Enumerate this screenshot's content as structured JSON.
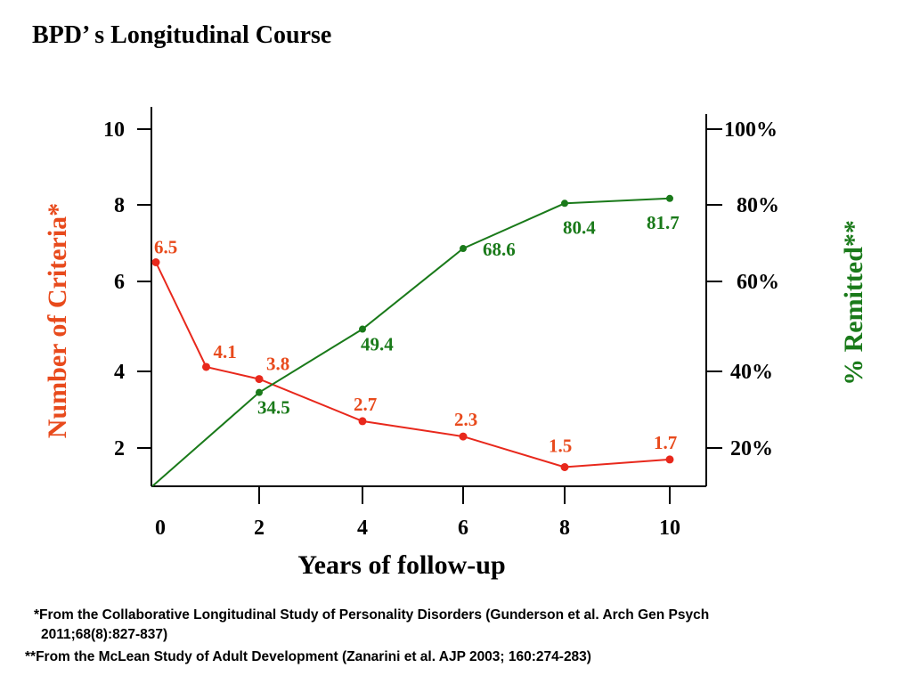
{
  "slide": {
    "title": "BPD’ s Longitudinal Course"
  },
  "colors": {
    "criteria": "#e8281c",
    "criteria_label": "#e84a1c",
    "remitted": "#1a7a1a",
    "axis": "#000000"
  },
  "chart_data": {
    "type": "line",
    "title": "BPD’ s Longitudinal Course",
    "xlabel": "Years of follow-up",
    "ylabel_left": "Number of Criteria*",
    "ylabel_right": "% Remitted**",
    "x_ticks": [
      "0",
      "2",
      "4",
      "6",
      "8",
      "10"
    ],
    "x_tick_values": [
      0,
      2,
      4,
      6,
      8,
      10
    ],
    "xlim": [
      0,
      10.5
    ],
    "y_left_ticks": [
      "10",
      "8",
      "6",
      "4",
      "2"
    ],
    "y_left_tick_values": [
      10,
      8,
      6,
      4,
      2
    ],
    "y_left_lim": [
      1,
      10
    ],
    "y_right_ticks": [
      "100%",
      "80%",
      "60%",
      "40%",
      "20%"
    ],
    "y_right_tick_values": [
      100,
      80,
      60,
      40,
      20
    ],
    "y_right_lim": [
      0,
      100
    ],
    "grid": false,
    "legend": "none",
    "series": [
      {
        "name": "Number of Criteria",
        "axis": "left",
        "color": "#e8281c",
        "x": [
          0,
          1,
          2,
          4,
          6,
          8,
          10
        ],
        "values": [
          6.5,
          4.1,
          3.8,
          2.7,
          2.3,
          1.5,
          1.7
        ],
        "labels": [
          "6.5",
          "4.1",
          "3.8",
          "2.7",
          "2.3",
          "1.5",
          "1.7"
        ]
      },
      {
        "name": "% Remitted",
        "axis": "right",
        "color": "#1a7a1a",
        "x": [
          0,
          2,
          4,
          6,
          8,
          10
        ],
        "values": [
          0,
          34.5,
          49.4,
          68.6,
          80.4,
          81.7
        ],
        "labels": [
          "",
          "34.5",
          "49.4",
          "68.6",
          "80.4",
          "81.7"
        ]
      }
    ]
  },
  "footnotes": [
    "*From the Collaborative Longitudinal Study of Personality Disorders (Gunderson et al. Arch Gen Psych",
    "2011;68(8):827-837)",
    "**From the McLean Study of Adult Development (Zanarini et al. AJP 2003; 160:274-283)"
  ]
}
